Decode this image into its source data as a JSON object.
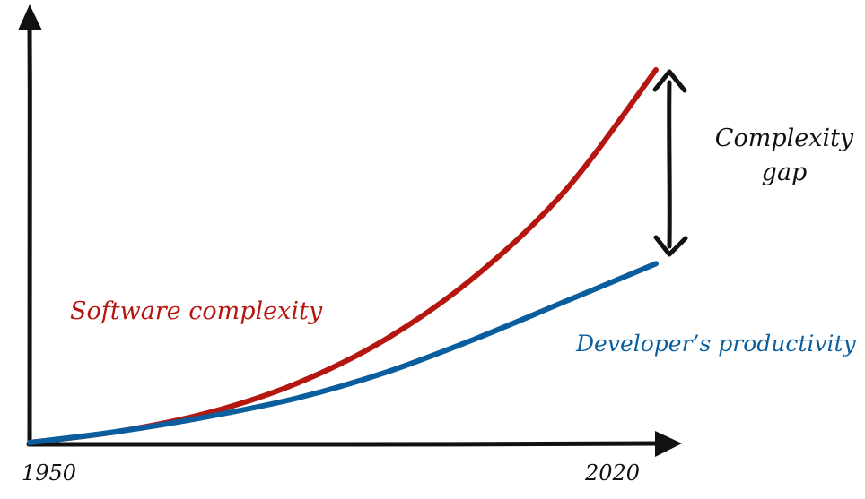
{
  "chart_data": {
    "type": "line",
    "x_ticks": [
      "1950",
      "2020"
    ],
    "xlim": [
      1950,
      2020
    ],
    "series": [
      {
        "name": "Software complexity",
        "color": "#b5160f",
        "curve": "convex-growth",
        "points": [
          [
            1950,
            0
          ],
          [
            1960,
            3
          ],
          [
            1970,
            8
          ],
          [
            1980,
            16
          ],
          [
            1990,
            28
          ],
          [
            2000,
            45
          ],
          [
            2010,
            68
          ],
          [
            2020,
            100
          ]
        ]
      },
      {
        "name": "Developer's productivity",
        "color": "#0a5e9e",
        "curve": "convex-growth",
        "points": [
          [
            1950,
            0
          ],
          [
            1960,
            3
          ],
          [
            1970,
            7
          ],
          [
            1980,
            12
          ],
          [
            1990,
            19
          ],
          [
            2000,
            28
          ],
          [
            2010,
            38
          ],
          [
            2020,
            48
          ]
        ]
      }
    ],
    "annotations": [
      {
        "text_lines": [
          "Complexity",
          "gap"
        ],
        "between": [
          "Software complexity",
          "Developer's productivity"
        ],
        "at_x": 2020,
        "arrow": "double-headed"
      }
    ],
    "axis_color": "#111111",
    "grid": false
  },
  "labels": {
    "red": "Software complexity",
    "blue": "Developer’s productivity",
    "gap_line1": "Complexity",
    "gap_line2": "gap",
    "x_start": "1950",
    "x_end": "2020"
  }
}
